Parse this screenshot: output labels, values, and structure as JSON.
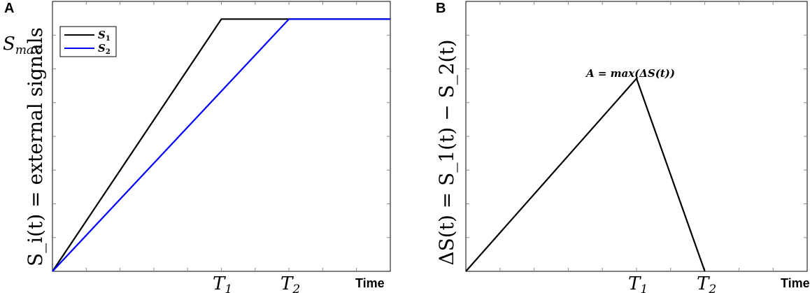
{
  "chart_data": [
    {
      "panel": "A",
      "type": "line",
      "xlabel": "Time",
      "ylabel": "S_i(t) = external signals",
      "x_ticks": [
        {
          "value": 5,
          "label": "T_1"
        },
        {
          "value": 7,
          "label": "T_2"
        }
      ],
      "y_ticks": [
        {
          "value": 1,
          "label": "S_max"
        }
      ],
      "xlim": [
        0,
        10
      ],
      "ylim": [
        0,
        1.07
      ],
      "grid": false,
      "legend_position": "top-left",
      "series": [
        {
          "name": "S_1",
          "color": "#000000",
          "x": [
            0,
            5,
            7,
            10
          ],
          "y": [
            0,
            1,
            1,
            1
          ]
        },
        {
          "name": "S_2",
          "color": "#0000ff",
          "x": [
            0,
            7,
            10
          ],
          "y": [
            0,
            1,
            1
          ]
        }
      ]
    },
    {
      "panel": "B",
      "type": "line",
      "xlabel": "Time",
      "ylabel": "ΔS(t) = S_1(t) − S_2(t)",
      "x_ticks": [
        {
          "value": 5,
          "label": "T_1"
        },
        {
          "value": 7,
          "label": "T_2"
        }
      ],
      "xlim": [
        0,
        10
      ],
      "ylim": [
        0,
        0.4
      ],
      "grid": false,
      "annotations": [
        {
          "text": "A = max(ΔS(t))",
          "x": 5,
          "y": 0.2857
        }
      ],
      "series": [
        {
          "name": "",
          "color": "#000000",
          "x": [
            0,
            5,
            7
          ],
          "y": [
            0,
            0.2857,
            0
          ]
        }
      ]
    }
  ],
  "labels": {
    "panel_a": "A",
    "panel_b": "B",
    "time_a": "Time",
    "time_b": "Time",
    "t1_main": "T",
    "t1_sub": "1",
    "t2_main": "T",
    "t2_sub": "2",
    "smax_main": "S",
    "smax_sub": "max",
    "legend_s1_main": "S",
    "legend_s1_sub": "1",
    "legend_s2_main": "S",
    "legend_s2_sub": "2",
    "ylabel_a": "S_i(t) = external signals",
    "ylabel_b": "ΔS(t) = S_1(t) − S_2(t)",
    "annot_b": "A = max(ΔS(t))"
  },
  "colors": {
    "s1": "#000000",
    "s2": "#0000ff",
    "axis": "#000000",
    "tick": "#888888"
  }
}
